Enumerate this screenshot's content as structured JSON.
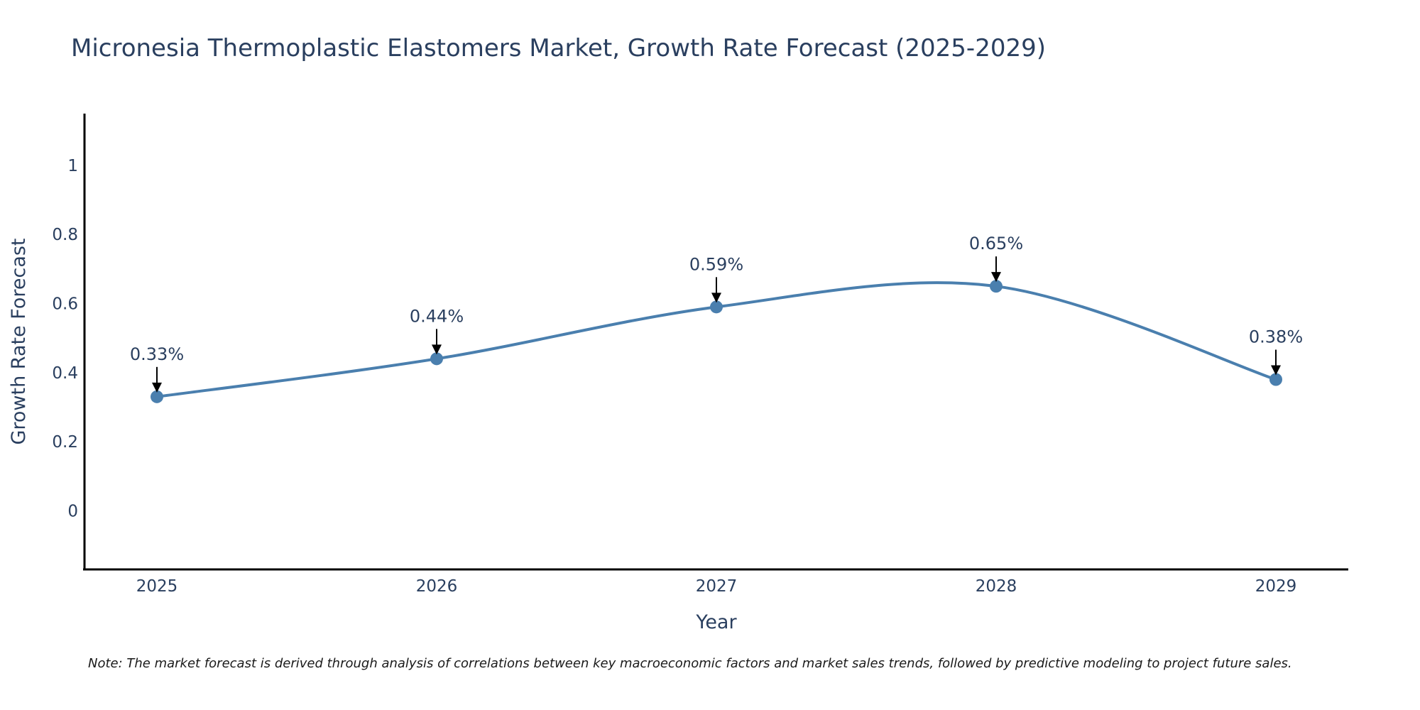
{
  "chart_data": {
    "type": "line",
    "title": "Micronesia Thermoplastic Elastomers Market, Growth Rate Forecast (2025-2029)",
    "xlabel": "Year",
    "ylabel": "Growth Rate Forecast",
    "categories": [
      "2025",
      "2026",
      "2027",
      "2028",
      "2029"
    ],
    "series": [
      {
        "name": "Growth Rate Forecast",
        "values": [
          0.33,
          0.44,
          0.59,
          0.65,
          0.38
        ],
        "labels": [
          "0.33%",
          "0.44%",
          "0.59%",
          "0.65%",
          "0.38%"
        ],
        "color": "#4a7fae"
      }
    ],
    "ylim": [
      -0.17,
      1.15
    ],
    "y_ticks": [
      0,
      0.2,
      0.4,
      0.6,
      0.8,
      1
    ],
    "y_tick_labels": [
      "0",
      "0.2",
      "0.4",
      "0.6",
      "0.8",
      "1"
    ],
    "grid": false,
    "note": "Note: The market forecast is derived through analysis of correlations between key macroeconomic factors and market sales trends, followed by predictive modeling to project future sales."
  }
}
